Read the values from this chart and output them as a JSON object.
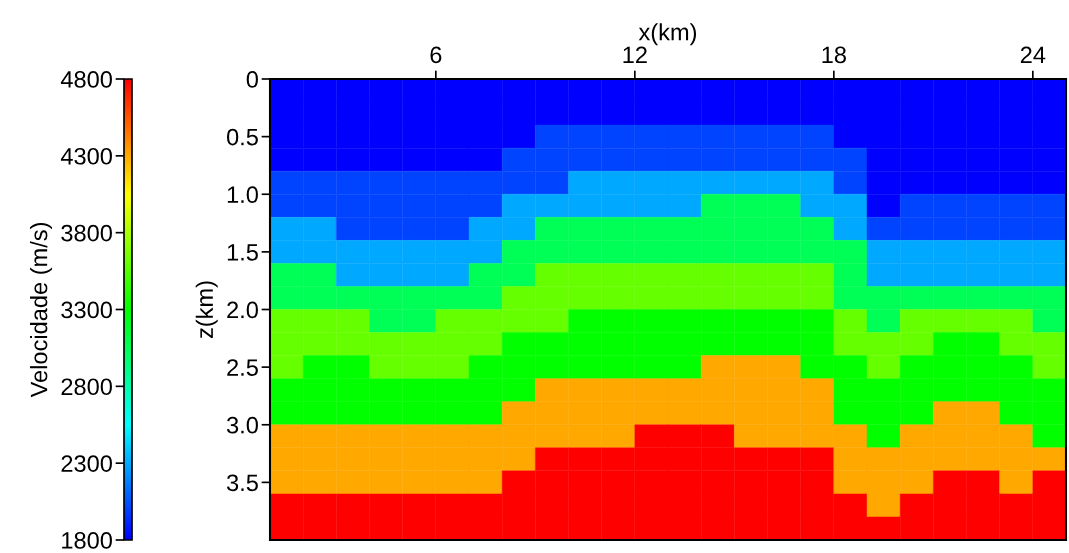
{
  "chart_data": {
    "type": "heatmap",
    "xlabel": "x(km)",
    "ylabel": "z(km)",
    "clabel": "Velocidade (m/s)",
    "x": [
      1.5,
      2.5,
      3.5,
      4.5,
      5.5,
      6.5,
      7.5,
      8.5,
      9.5,
      10.5,
      11.5,
      12.5,
      13.5,
      14.5,
      15.5,
      16.5,
      17.5,
      18.5,
      19.5,
      20.5,
      21.5,
      22.5,
      23.5,
      24.5
    ],
    "y": [
      0.1,
      0.3,
      0.5,
      0.7,
      0.9,
      1.1,
      1.3,
      1.5,
      1.7,
      1.9,
      2.1,
      2.3,
      2.5,
      2.7,
      2.9,
      3.1,
      3.3,
      3.5,
      3.7,
      3.9
    ],
    "xlim": [
      1,
      25
    ],
    "xticks": [
      6,
      12,
      18,
      24
    ],
    "ylim": [
      4,
      0
    ],
    "yticks": [
      0,
      0.5,
      {
        "value": 1,
        "label": "1.0"
      },
      1.5,
      {
        "value": 2,
        "label": "2.0"
      },
      2.5,
      {
        "value": 3,
        "label": "3.0"
      },
      3.5
    ],
    "clim": [
      1800,
      4800
    ],
    "cticks": [
      1800,
      2300,
      2800,
      3300,
      3800,
      4300,
      4800
    ],
    "cells": [
      [
        1800,
        1800,
        1800,
        1800,
        1800,
        1800,
        1800,
        1800,
        1800,
        1800,
        1800,
        1800,
        1800,
        1800,
        1800,
        1800,
        1800,
        1800,
        1800,
        1800,
        1800,
        1800,
        1800,
        1800
      ],
      [
        1800,
        1800,
        1800,
        1800,
        1800,
        1800,
        1800,
        1800,
        1800,
        1800,
        1800,
        1800,
        1800,
        1800,
        1800,
        1800,
        1800,
        1800,
        1800,
        1800,
        1800,
        1800,
        1800,
        1800
      ],
      [
        1800,
        1800,
        1800,
        1800,
        1800,
        1800,
        1800,
        1800,
        2000,
        2000,
        2000,
        2000,
        2000,
        2000,
        2000,
        2000,
        2000,
        1800,
        1800,
        1800,
        1800,
        1800,
        1800,
        1800
      ],
      [
        1800,
        1800,
        1800,
        1800,
        1800,
        1800,
        1800,
        2000,
        2000,
        2000,
        2000,
        2000,
        2000,
        2000,
        2000,
        2000,
        2000,
        2000,
        1800,
        1800,
        1800,
        1800,
        1800,
        1800
      ],
      [
        2000,
        2000,
        2000,
        2000,
        2000,
        2000,
        2000,
        2000,
        2000,
        2300,
        2300,
        2300,
        2300,
        2300,
        2300,
        2300,
        2300,
        2000,
        1800,
        1800,
        1800,
        1800,
        1800,
        1800
      ],
      [
        2000,
        2000,
        2000,
        2000,
        2000,
        2000,
        2000,
        2300,
        2300,
        2300,
        2300,
        2300,
        2300,
        3050,
        3050,
        3050,
        2300,
        2300,
        1800,
        2000,
        2000,
        2000,
        2000,
        2000
      ],
      [
        2300,
        2300,
        2000,
        2000,
        2000,
        2000,
        2300,
        2300,
        3050,
        3050,
        3050,
        3050,
        3050,
        3050,
        3050,
        3050,
        3050,
        2300,
        2000,
        2000,
        2000,
        2000,
        2000,
        2000
      ],
      [
        2300,
        2300,
        2300,
        2300,
        2300,
        2300,
        2300,
        3050,
        3050,
        3050,
        3050,
        3050,
        3050,
        3050,
        3050,
        3050,
        3050,
        3050,
        2300,
        2300,
        2300,
        2300,
        2300,
        2300
      ],
      [
        3050,
        3050,
        2300,
        2300,
        2300,
        2300,
        3050,
        3050,
        3600,
        3600,
        3600,
        3600,
        3600,
        3600,
        3600,
        3600,
        3600,
        3050,
        2300,
        2300,
        2300,
        2300,
        2300,
        2300
      ],
      [
        3050,
        3050,
        3050,
        3050,
        3050,
        3050,
        3050,
        3600,
        3600,
        3600,
        3600,
        3600,
        3600,
        3600,
        3600,
        3600,
        3600,
        3050,
        3050,
        3050,
        3050,
        3050,
        3050,
        3050
      ],
      [
        3600,
        3600,
        3600,
        3050,
        3050,
        3600,
        3600,
        3600,
        3600,
        3300,
        3300,
        3300,
        3300,
        3300,
        3300,
        3300,
        3300,
        3600,
        3050,
        3600,
        3600,
        3600,
        3600,
        3050
      ],
      [
        3600,
        3600,
        3600,
        3600,
        3600,
        3600,
        3600,
        3300,
        3300,
        3300,
        3300,
        3300,
        3300,
        3300,
        3300,
        3300,
        3300,
        3600,
        3600,
        3600,
        3300,
        3300,
        3600,
        3600
      ],
      [
        3600,
        3300,
        3300,
        3600,
        3600,
        3600,
        3300,
        3300,
        3300,
        3300,
        3300,
        3300,
        3300,
        4300,
        4300,
        4300,
        3300,
        3300,
        3600,
        3300,
        3300,
        3300,
        3300,
        3600
      ],
      [
        3300,
        3300,
        3300,
        3300,
        3300,
        3300,
        3300,
        3300,
        4300,
        4300,
        4300,
        4300,
        4300,
        4300,
        4300,
        4300,
        4300,
        3300,
        3300,
        3300,
        3300,
        3300,
        3300,
        3300
      ],
      [
        3300,
        3300,
        3300,
        3300,
        3300,
        3300,
        3300,
        4300,
        4300,
        4300,
        4300,
        4300,
        4300,
        4300,
        4300,
        4300,
        4300,
        3300,
        3300,
        3300,
        4300,
        4300,
        3300,
        3300
      ],
      [
        4300,
        4300,
        4300,
        4300,
        4300,
        4300,
        4300,
        4300,
        4300,
        4300,
        4300,
        4800,
        4800,
        4800,
        4300,
        4300,
        4300,
        4300,
        3300,
        4300,
        4300,
        4300,
        4300,
        3300
      ],
      [
        4300,
        4300,
        4300,
        4300,
        4300,
        4300,
        4300,
        4300,
        4800,
        4800,
        4800,
        4800,
        4800,
        4800,
        4800,
        4800,
        4800,
        4300,
        4300,
        4300,
        4300,
        4300,
        4300,
        4300
      ],
      [
        4300,
        4300,
        4300,
        4300,
        4300,
        4300,
        4300,
        4800,
        4800,
        4800,
        4800,
        4800,
        4800,
        4800,
        4800,
        4800,
        4800,
        4300,
        4300,
        4300,
        4800,
        4800,
        4300,
        4800
      ],
      [
        4800,
        4800,
        4800,
        4800,
        4800,
        4800,
        4800,
        4800,
        4800,
        4800,
        4800,
        4800,
        4800,
        4800,
        4800,
        4800,
        4800,
        4800,
        4300,
        4800,
        4800,
        4800,
        4800,
        4800
      ],
      [
        4800,
        4800,
        4800,
        4800,
        4800,
        4800,
        4800,
        4800,
        4800,
        4800,
        4800,
        4800,
        4800,
        4800,
        4800,
        4800,
        4800,
        4800,
        4800,
        4800,
        4800,
        4800,
        4800,
        4800
      ]
    ]
  }
}
